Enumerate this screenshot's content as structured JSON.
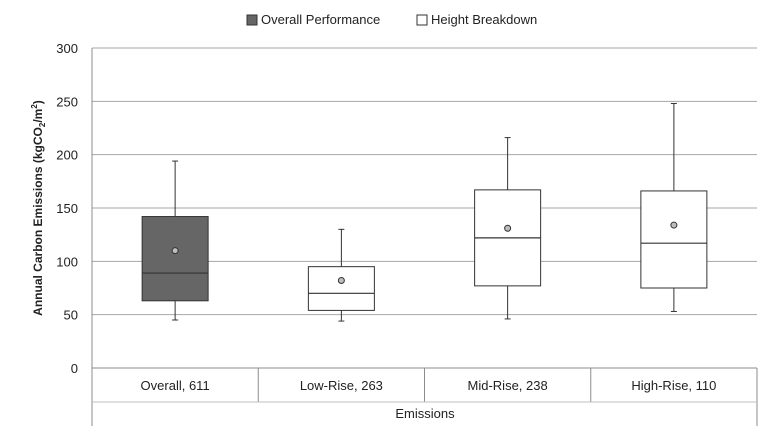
{
  "chart_data": {
    "type": "boxplot",
    "xlabel": "Emissions",
    "ylabel": "Annual Carbon Emissions (kgCO2/m2)",
    "ylabel_parts": {
      "a": "Annual Carbon Emissions  (kgCO",
      "b": "2",
      "c": "/m",
      "d": "2",
      "e": ")"
    },
    "ylim": [
      0,
      300
    ],
    "yticks": [
      0,
      50,
      100,
      150,
      200,
      250,
      300
    ],
    "grid": true,
    "legend_position": "top",
    "legend": [
      {
        "label": "Overall Performance",
        "color": "#666666"
      },
      {
        "label": "Height Breakdown",
        "color": "#ffffff"
      }
    ],
    "categories": [
      "Overall, 611",
      "Low-Rise, 263",
      "Mid-Rise, 238",
      "High-Rise, 110"
    ],
    "boxes": [
      {
        "series": "Overall Performance",
        "min": 45,
        "q1": 63,
        "median": 89,
        "q3": 142,
        "max": 194,
        "mean": 110
      },
      {
        "series": "Height Breakdown",
        "min": 44,
        "q1": 54,
        "median": 70,
        "q3": 95,
        "max": 130,
        "mean": 82
      },
      {
        "series": "Height Breakdown",
        "min": 46,
        "q1": 77,
        "median": 122,
        "q3": 167,
        "max": 216,
        "mean": 131
      },
      {
        "series": "Height Breakdown",
        "min": 53,
        "q1": 75,
        "median": 117,
        "q3": 166,
        "max": 248,
        "mean": 134
      }
    ]
  }
}
